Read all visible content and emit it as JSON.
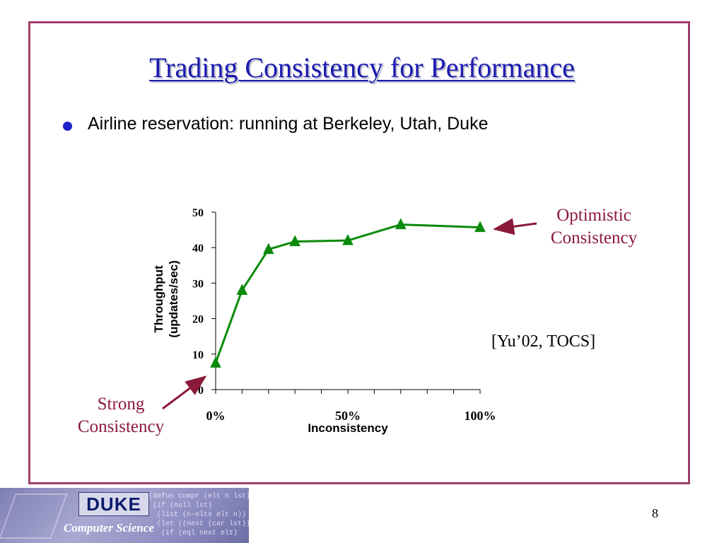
{
  "slide": {
    "title": "Trading Consistency for Performance",
    "bullet": "Airline reservation: running at Berkeley, Utah, Duke",
    "annot_optimistic": [
      "Optimistic",
      "Consistency"
    ],
    "annot_strong": [
      "Strong",
      "Consistency"
    ],
    "citation": "[Yu’02, TOCS]",
    "page_number": "8"
  },
  "logo": {
    "name": "DUKE",
    "subtitle": "Computer Science",
    "code_text": "(defun compr (elt n lst)\n (if (null lst)\n  (list (n-elts elt n))\n  (let ((next (car lst)))\n   (if (eql next elt)"
  },
  "colors": {
    "title": "#1a1ab0",
    "frame": "#a0406a",
    "annotation": "#8b1a3a",
    "series": "#0a8a0a"
  },
  "chart_data": {
    "type": "line",
    "xlabel": "Inconsistency",
    "ylabel_lines": [
      "Throughput",
      "(updates/sec)"
    ],
    "x_ticks": [
      0,
      50,
      100
    ],
    "x_tick_labels": [
      "0%",
      "50%",
      "100%"
    ],
    "y_ticks": [
      0,
      10,
      20,
      30,
      40,
      50
    ],
    "xlim": [
      0,
      100
    ],
    "ylim": [
      0,
      50
    ],
    "grid": false,
    "marker": "triangle",
    "series": [
      {
        "x": [
          0,
          10,
          20,
          30,
          50,
          70,
          100
        ],
        "y": [
          7.5,
          28,
          39.5,
          41.7,
          42,
          46.5,
          45.7
        ]
      }
    ]
  }
}
